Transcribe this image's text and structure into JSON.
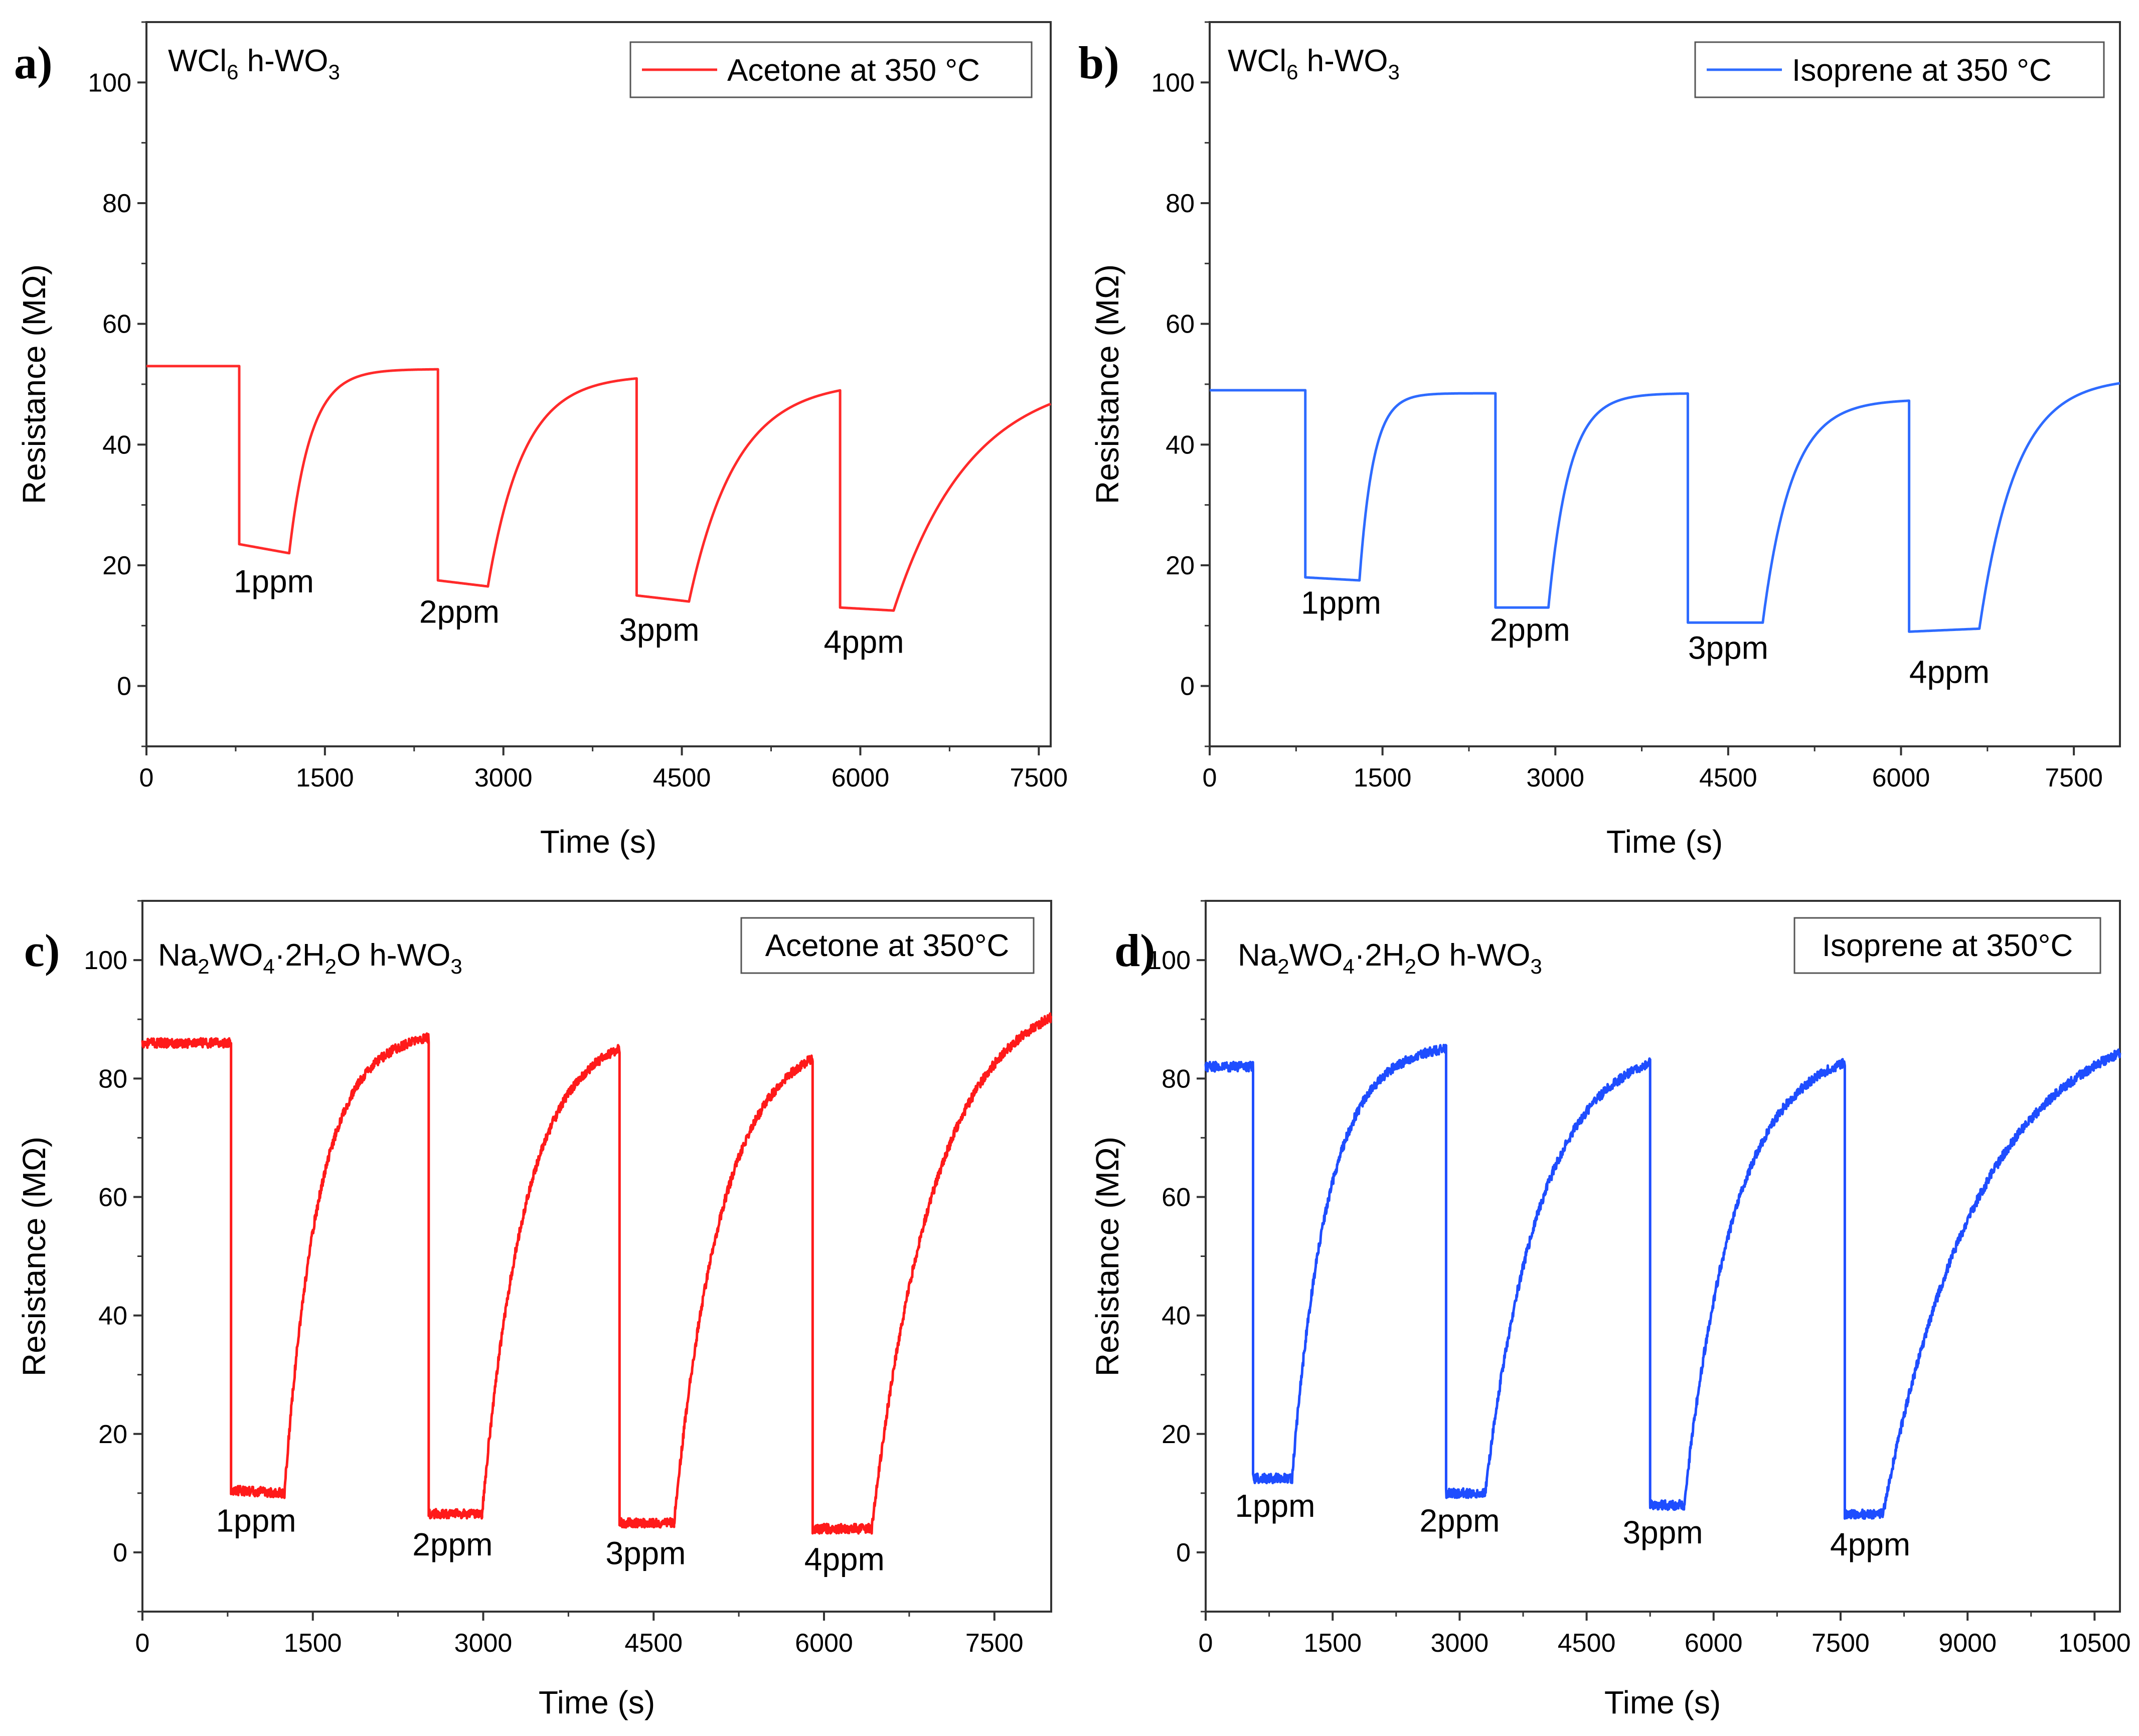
{
  "chart_data": [
    {
      "id": "a",
      "type": "line",
      "panel_letter": "a)",
      "sample": {
        "base": "WCl",
        "sub1": "6",
        "mid": " h-WO",
        "sub2": "3"
      },
      "legend": {
        "label": "Acetone at 350 °C",
        "style": "line"
      },
      "color": "#ff2a2a",
      "noise": 0.0,
      "xlabel": "Time (s)",
      "ylabel": "Resistance (MΩ)",
      "xlim": [
        0,
        7600
      ],
      "ylim": [
        -10,
        110
      ],
      "xticks": [
        0,
        1500,
        3000,
        4500,
        6000,
        7500
      ],
      "yticks": [
        0,
        20,
        40,
        60,
        80,
        100
      ],
      "baseline_start": 53,
      "pulses": [
        {
          "on": 780,
          "off": 1200,
          "low": 23.5,
          "end": 22,
          "recovery": 52.5,
          "tau": 180
        },
        {
          "on": 2450,
          "off": 2870,
          "low": 17.5,
          "end": 16.5,
          "recovery": 51.5,
          "tau": 300
        },
        {
          "on": 4120,
          "off": 4560,
          "low": 15,
          "end": 14,
          "recovery": 50.5,
          "tau": 400
        },
        {
          "on": 5830,
          "off": 6280,
          "low": 13,
          "end": 12.5,
          "recovery": 50,
          "tau": 650
        }
      ],
      "end_value": 49,
      "labels": [
        {
          "text": "1ppm",
          "x": 1070,
          "y": 15.5
        },
        {
          "text": "2ppm",
          "x": 2630,
          "y": 10.5
        },
        {
          "text": "3ppm",
          "x": 4310,
          "y": 7.5
        },
        {
          "text": "4ppm",
          "x": 6030,
          "y": 5.5
        }
      ]
    },
    {
      "id": "b",
      "type": "line",
      "panel_letter": "b)",
      "sample": {
        "base": "WCl",
        "sub1": "6",
        "mid": " h-WO",
        "sub2": "3"
      },
      "legend": {
        "label": "Isoprene at 350 °C",
        "style": "line"
      },
      "color": "#2e6bff",
      "noise": 0.0,
      "xlabel": "Time (s)",
      "ylabel": "Resistance (MΩ)",
      "xlim": [
        0,
        7900
      ],
      "ylim": [
        -10,
        110
      ],
      "xticks": [
        0,
        1500,
        3000,
        4500,
        6000,
        7500
      ],
      "yticks": [
        0,
        20,
        40,
        60,
        80,
        100
      ],
      "baseline_start": 49,
      "pulses": [
        {
          "on": 830,
          "off": 1300,
          "low": 18,
          "end": 17.5,
          "recovery": 48.5,
          "tau": 120
        },
        {
          "on": 2480,
          "off": 2940,
          "low": 13,
          "end": 13,
          "recovery": 48.5,
          "tau": 180
        },
        {
          "on": 4150,
          "off": 4800,
          "low": 10.5,
          "end": 10.5,
          "recovery": 47.5,
          "tau": 250
        },
        {
          "on": 6070,
          "off": 6680,
          "low": 9,
          "end": 9.5,
          "recovery": 48,
          "tau": 320
        }
      ],
      "end_value": 48,
      "labels": [
        {
          "text": "1ppm",
          "x": 1140,
          "y": 12
        },
        {
          "text": "2ppm",
          "x": 2780,
          "y": 7.5
        },
        {
          "text": "3ppm",
          "x": 4500,
          "y": 4.5
        },
        {
          "text": "4ppm",
          "x": 6420,
          "y": 0.5
        }
      ]
    },
    {
      "id": "c",
      "type": "line",
      "panel_letter": "c)",
      "sample": {
        "base": "Na",
        "sub1": "2",
        "mid": "WO",
        "sub2": "4",
        "mid2": "·2H",
        "sub3": "2",
        "mid3": "O h-WO",
        "sub4": "3"
      },
      "legend": {
        "label": "Acetone at 350°C",
        "style": "box"
      },
      "color": "#ff1a1a",
      "noise": 0.8,
      "xlabel": "Time (s)",
      "ylabel": "Resistance (MΩ)",
      "xlim": [
        0,
        8000
      ],
      "ylim": [
        -10,
        110
      ],
      "xticks": [
        0,
        1500,
        3000,
        4500,
        6000,
        7500
      ],
      "yticks": [
        0,
        20,
        40,
        60,
        80,
        100
      ],
      "baseline_start": 86,
      "pulses": [
        {
          "on": 780,
          "off": 1250,
          "low": 10.5,
          "end": 10,
          "recovery": 88,
          "tau": 300
        },
        {
          "on": 2520,
          "off": 2990,
          "low": 6.5,
          "end": 6.5,
          "recovery": 88.5,
          "tau": 380
        },
        {
          "on": 4200,
          "off": 4680,
          "low": 5,
          "end": 5,
          "recovery": 88,
          "tau": 420
        },
        {
          "on": 5900,
          "off": 6420,
          "low": 4,
          "end": 4,
          "recovery": 88,
          "tau": 560
        }
      ],
      "end_value": 89,
      "labels": [
        {
          "text": "1ppm",
          "x": 1000,
          "y": 3.5
        },
        {
          "text": "2ppm",
          "x": 2730,
          "y": -0.5
        },
        {
          "text": "3ppm",
          "x": 4430,
          "y": -2
        },
        {
          "text": "4ppm",
          "x": 6180,
          "y": -3
        }
      ]
    },
    {
      "id": "d",
      "type": "line",
      "panel_letter": "d)",
      "sample": {
        "base": "Na",
        "sub1": "2",
        "mid": "WO",
        "sub2": "4",
        "mid2": "·2H",
        "sub3": "2",
        "mid3": "O h-WO",
        "sub4": "3"
      },
      "legend": {
        "label": "Isoprene at 350°C",
        "style": "box"
      },
      "color": "#1e4dff",
      "noise": 0.8,
      "xlabel": "Time (s)",
      "ylabel": "Resistance (MΩ)",
      "xlim": [
        0,
        10800
      ],
      "ylim": [
        -10,
        110
      ],
      "xticks": [
        0,
        1500,
        3000,
        4500,
        6000,
        7500,
        9000,
        10500
      ],
      "yticks": [
        0,
        20,
        40,
        60,
        80,
        100
      ],
      "baseline_start": 82,
      "pulses": [
        {
          "on": 560,
          "off": 1020,
          "low": 12.5,
          "end": 12.5,
          "recovery": 86,
          "tau": 420
        },
        {
          "on": 2840,
          "off": 3300,
          "low": 10,
          "end": 10,
          "recovery": 86.5,
          "tau": 650
        },
        {
          "on": 5250,
          "off": 5650,
          "low": 8,
          "end": 8,
          "recovery": 86,
          "tau": 600
        },
        {
          "on": 7550,
          "off": 8000,
          "low": 6.5,
          "end": 6.5,
          "recovery": 87,
          "tau": 1150
        }
      ],
      "end_value": 85.5,
      "labels": [
        {
          "text": "1ppm",
          "x": 820,
          "y": 6
        },
        {
          "text": "2ppm",
          "x": 3000,
          "y": 3.5
        },
        {
          "text": "3ppm",
          "x": 5400,
          "y": 1.5
        },
        {
          "text": "4ppm",
          "x": 7850,
          "y": -0.5
        }
      ]
    }
  ]
}
